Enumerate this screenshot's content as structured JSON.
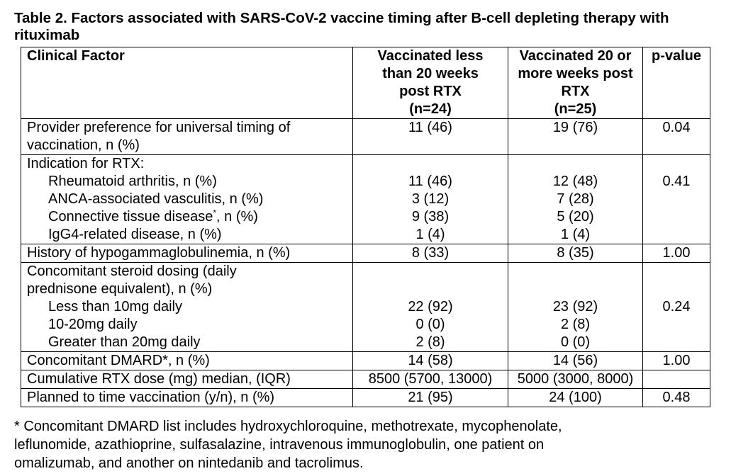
{
  "title": "Table 2. Factors associated with SARS-CoV-2 vaccine timing after B-cell depleting therapy with rituximab",
  "headers": {
    "factor": "Clinical Factor",
    "col1": [
      "Vaccinated less",
      "than 20 weeks",
      "post RTX",
      "(n=24)"
    ],
    "col2": [
      "Vaccinated 20 or",
      "more weeks post",
      "RTX",
      "(n=25)"
    ],
    "pval": "p-value"
  },
  "rows": {
    "provider": {
      "label": [
        "Provider preference for universal timing of",
        "vaccination, n (%)"
      ],
      "c1": "11 (46)",
      "c2": "19 (76)",
      "p": "0.04"
    },
    "indication": {
      "label": "Indication for RTX:",
      "items": [
        {
          "label": "Rheumatoid arthritis, n (%)",
          "c1": "11 (46)",
          "c2": "12 (48)",
          "p": "0.41"
        },
        {
          "label": "ANCA-associated vasculitis, n (%)",
          "c1": "3 (12)",
          "c2": "7 (28)"
        },
        {
          "label": "Connective tissue disease",
          "sup": "*",
          "label_tail": ", n (%)",
          "c1": "9 (38)",
          "c2": "5 (20)"
        },
        {
          "label": "IgG4-related disease, n (%)",
          "c1": "1 (4)",
          "c2": "1 (4)"
        }
      ]
    },
    "hypo": {
      "label": "History of hypogammaglobulinemia, n (%)",
      "c1": "8 (33)",
      "c2": "8 (35)",
      "p": "1.00"
    },
    "steroid": {
      "label": [
        "Concomitant steroid dosing (daily",
        "prednisone equivalent), n (%)"
      ],
      "items": [
        {
          "label": "Less than 10mg daily",
          "c1": "22 (92)",
          "c2": "23 (92)",
          "p": "0.24"
        },
        {
          "label": "10-20mg daily",
          "c1": "0 (0)",
          "c2": "2 (8)"
        },
        {
          "label": "Greater than 20mg daily",
          "c1": "2 (8)",
          "c2": "0 (0)"
        }
      ]
    },
    "dmard": {
      "label": "Concomitant DMARD*, n (%)",
      "c1": "14 (58)",
      "c2": "14 (56)",
      "p": "1.00"
    },
    "dose": {
      "label": "Cumulative RTX dose (mg) median, (IQR)",
      "c1": "8500 (5700, 13000)",
      "c2": "5000 (3000, 8000)",
      "p": ""
    },
    "planned": {
      "label": "Planned to time vaccination (y/n), n (%)",
      "c1": "21 (95)",
      "c2": "24 (100)",
      "p": "0.48"
    }
  },
  "footnote": [
    "* Concomitant DMARD list includes hydroxychloroquine, methotrexate, mycophenolate,",
    "leflunomide, azathioprine, sulfasalazine, intravenous immunoglobulin, one patient on",
    "omalizumab, and another on nintedanib and tacrolimus."
  ]
}
